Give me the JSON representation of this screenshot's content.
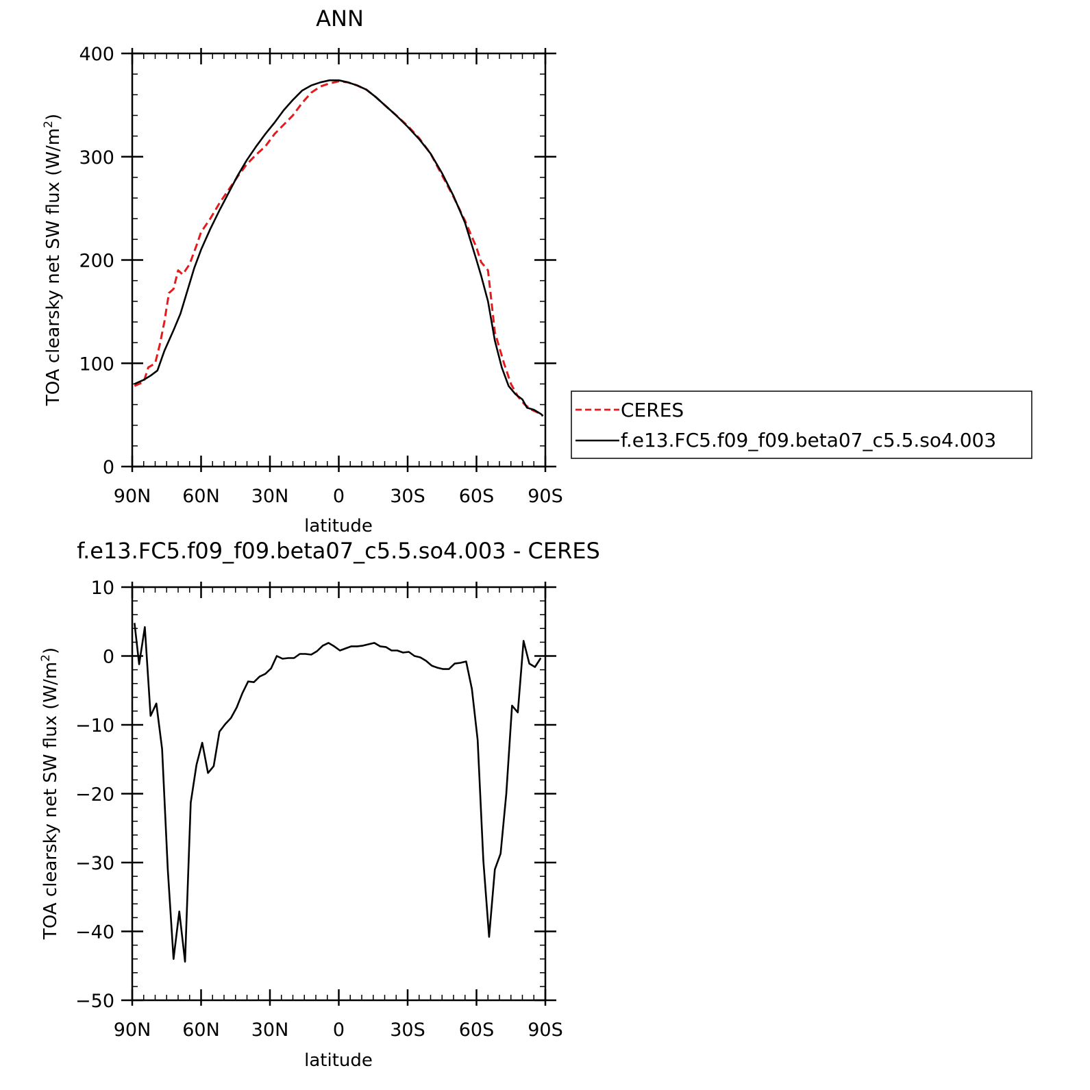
{
  "chart_data": [
    {
      "type": "line",
      "title": "ANN",
      "xlabel": "latitude",
      "ylabel": "TOA clearsky net SW flux (W/m",
      "ylabel_sup": "2",
      "ylabel_close": ")",
      "xlim": [
        90,
        -90
      ],
      "ylim": [
        0,
        400
      ],
      "x_ticks": [
        {
          "value": 90,
          "label": "90N"
        },
        {
          "value": 60,
          "label": "60N"
        },
        {
          "value": 30,
          "label": "30N"
        },
        {
          "value": 0,
          "label": "0"
        },
        {
          "value": -30,
          "label": "30S"
        },
        {
          "value": -60,
          "label": "60S"
        },
        {
          "value": -90,
          "label": "90S"
        }
      ],
      "y_ticks": [
        {
          "value": 0,
          "label": "0"
        },
        {
          "value": 100,
          "label": "100"
        },
        {
          "value": 200,
          "label": "200"
        },
        {
          "value": 300,
          "label": "300"
        },
        {
          "value": 400,
          "label": "400"
        }
      ],
      "legend": "right",
      "series": [
        {
          "name": "CERES",
          "color": "#e41a1c",
          "dash": true,
          "points": [
            [
              89,
              78
            ],
            [
              85,
              82
            ],
            [
              83,
              96
            ],
            [
              80,
              100
            ],
            [
              78,
              118
            ],
            [
              76,
              140
            ],
            [
              74,
              168
            ],
            [
              72,
              172
            ],
            [
              70,
              190
            ],
            [
              68,
              186
            ],
            [
              65,
              196
            ],
            [
              62,
              214
            ],
            [
              60,
              227
            ],
            [
              56,
              240
            ],
            [
              52,
              255
            ],
            [
              48,
              268
            ],
            [
              44,
              281
            ],
            [
              40,
              293
            ],
            [
              36,
              302
            ],
            [
              32,
              310
            ],
            [
              28,
              322
            ],
            [
              24,
              331
            ],
            [
              20,
              340
            ],
            [
              16,
              352
            ],
            [
              12,
              362
            ],
            [
              8,
              368
            ],
            [
              4,
              371
            ],
            [
              0,
              373
            ],
            [
              -4,
              372
            ],
            [
              -8,
              369
            ],
            [
              -12,
              365
            ],
            [
              -16,
              358
            ],
            [
              -20,
              350
            ],
            [
              -25,
              340
            ],
            [
              -30,
              330
            ],
            [
              -35,
              318
            ],
            [
              -40,
              303
            ],
            [
              -45,
              282
            ],
            [
              -50,
              261
            ],
            [
              -55,
              238
            ],
            [
              -60,
              212
            ],
            [
              -62,
              198
            ],
            [
              -65,
              190
            ],
            [
              -68,
              130
            ],
            [
              -72,
              100
            ],
            [
              -75,
              80
            ],
            [
              -78,
              68
            ],
            [
              -81,
              60
            ],
            [
              -84,
              55
            ],
            [
              -87,
              52
            ],
            [
              -89,
              49
            ]
          ]
        },
        {
          "name": "f.e13.FC5.f09_f09.beta07_c5.5.so4.003",
          "color": "#000000",
          "dash": false,
          "points": [
            [
              89,
              80
            ],
            [
              85,
              84
            ],
            [
              82,
              88
            ],
            [
              79,
              93
            ],
            [
              76,
              112
            ],
            [
              72,
              132
            ],
            [
              69,
              148
            ],
            [
              66,
              170
            ],
            [
              63,
              192
            ],
            [
              60,
              210
            ],
            [
              56,
              230
            ],
            [
              52,
              248
            ],
            [
              48,
              265
            ],
            [
              44,
              282
            ],
            [
              40,
              297
            ],
            [
              36,
              310
            ],
            [
              32,
              322
            ],
            [
              28,
              333
            ],
            [
              24,
              345
            ],
            [
              20,
              355
            ],
            [
              16,
              364
            ],
            [
              12,
              369
            ],
            [
              8,
              372
            ],
            [
              4,
              374
            ],
            [
              0,
              374
            ],
            [
              -4,
              372
            ],
            [
              -8,
              369
            ],
            [
              -12,
              365
            ],
            [
              -16,
              358
            ],
            [
              -20,
              350
            ],
            [
              -25,
              340
            ],
            [
              -30,
              329
            ],
            [
              -35,
              317
            ],
            [
              -40,
              303
            ],
            [
              -45,
              284
            ],
            [
              -50,
              262
            ],
            [
              -55,
              236
            ],
            [
              -60,
              200
            ],
            [
              -62,
              185
            ],
            [
              -65,
              160
            ],
            [
              -68,
              122
            ],
            [
              -71,
              96
            ],
            [
              -74,
              78
            ],
            [
              -77,
              70
            ],
            [
              -80,
              65
            ],
            [
              -82,
              57
            ],
            [
              -85,
              55
            ],
            [
              -88,
              51
            ],
            [
              -89,
              49
            ]
          ]
        }
      ]
    },
    {
      "type": "line",
      "title": "f.e13.FC5.f09_f09.beta07_c5.5.so4.003 - CERES",
      "xlabel": "latitude",
      "ylabel": "TOA clearsky net SW flux (W/m",
      "ylabel_sup": "2",
      "ylabel_close": ")",
      "xlim": [
        90,
        -90
      ],
      "ylim": [
        -50,
        10
      ],
      "x_ticks": [
        {
          "value": 90,
          "label": "90N"
        },
        {
          "value": 60,
          "label": "60N"
        },
        {
          "value": 30,
          "label": "30N"
        },
        {
          "value": 0,
          "label": "0"
        },
        {
          "value": -30,
          "label": "30S"
        },
        {
          "value": -60,
          "label": "60S"
        },
        {
          "value": -90,
          "label": "90S"
        }
      ],
      "y_ticks": [
        {
          "value": 10,
          "label": "10"
        },
        {
          "value": 0,
          "label": "0"
        },
        {
          "value": -10,
          "label": "−10"
        },
        {
          "value": -20,
          "label": "−20"
        },
        {
          "value": -30,
          "label": "−30"
        },
        {
          "value": -40,
          "label": "−40"
        },
        {
          "value": -50,
          "label": "−50"
        }
      ],
      "series": [
        {
          "color": "#000000",
          "dash": false,
          "points": [
            [
              89,
              4.8
            ],
            [
              87,
              -1.2
            ],
            [
              84.5,
              4.2
            ],
            [
              82,
              -8.7
            ],
            [
              79.5,
              -6.9
            ],
            [
              77,
              -13.5
            ],
            [
              74.5,
              -31
            ],
            [
              72,
              -44
            ],
            [
              69.5,
              -37.1
            ],
            [
              67,
              -44.4
            ],
            [
              64.5,
              -21.3
            ],
            [
              62,
              -15.8
            ],
            [
              59.5,
              -12.6
            ],
            [
              57,
              -17
            ],
            [
              54.5,
              -16
            ],
            [
              52,
              -11
            ],
            [
              49.5,
              -9.9
            ],
            [
              47,
              -9
            ],
            [
              44.5,
              -7.5
            ],
            [
              42,
              -5.4
            ],
            [
              39.5,
              -3.7
            ],
            [
              37,
              -3.8
            ],
            [
              34.5,
              -3
            ],
            [
              32,
              -2.6
            ],
            [
              29.5,
              -1.8
            ],
            [
              27,
              0
            ],
            [
              24.5,
              -0.4
            ],
            [
              22,
              -0.3
            ],
            [
              19.5,
              -0.3
            ],
            [
              17,
              0.3
            ],
            [
              14.5,
              0.3
            ],
            [
              12,
              0.2
            ],
            [
              9.5,
              0.7
            ],
            [
              7,
              1.5
            ],
            [
              4.5,
              1.9
            ],
            [
              2,
              1.4
            ],
            [
              -0.5,
              0.8
            ],
            [
              -3,
              1.1
            ],
            [
              -5.5,
              1.4
            ],
            [
              -8,
              1.4
            ],
            [
              -10.5,
              1.5
            ],
            [
              -13,
              1.7
            ],
            [
              -15.5,
              1.9
            ],
            [
              -18,
              1.4
            ],
            [
              -20.5,
              1.3
            ],
            [
              -23,
              0.8
            ],
            [
              -25.5,
              0.8
            ],
            [
              -28,
              0.5
            ],
            [
              -30.5,
              0.6
            ],
            [
              -33,
              0
            ],
            [
              -35.5,
              -0.2
            ],
            [
              -38,
              -0.7
            ],
            [
              -40.5,
              -1.4
            ],
            [
              -43,
              -1.7
            ],
            [
              -45.5,
              -1.9
            ],
            [
              -48,
              -1.9
            ],
            [
              -50.5,
              -1.1
            ],
            [
              -53,
              -1
            ],
            [
              -55.5,
              -0.8
            ],
            [
              -58,
              -4.8
            ],
            [
              -60.5,
              -12.2
            ],
            [
              -63,
              -29.7
            ],
            [
              -65.5,
              -40.8
            ],
            [
              -68,
              -31
            ],
            [
              -70.5,
              -28.7
            ],
            [
              -73,
              -20
            ],
            [
              -75.5,
              -7.2
            ],
            [
              -78,
              -8.2
            ],
            [
              -80.5,
              2.2
            ],
            [
              -83,
              -1.1
            ],
            [
              -85.5,
              -1.6
            ],
            [
              -88,
              -0.3
            ]
          ]
        }
      ]
    }
  ]
}
